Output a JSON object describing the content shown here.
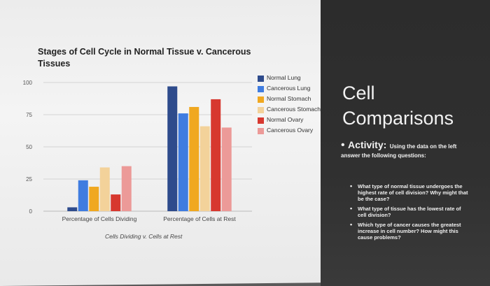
{
  "slide": {
    "chart_title": "Stages of Cell Cycle in Normal Tissue v. Cancerous Tissues",
    "panel_title": "Cell Comparisons",
    "activity_lead": "Activity:",
    "activity_text": "Using the data on the left answer the following questions:",
    "questions": [
      "What type of normal tissue undergoes the highest rate of cell division? Why might that be the case?",
      "What type of tissue has the lowest rate of cell division?",
      "Which type of cancer causes the greatest increase in cell number? How might this cause problems?"
    ],
    "colors": {
      "normal_lung": "#2e4b8c",
      "cancerous_lung": "#3f7ce0",
      "normal_stomach": "#f0a820",
      "cancerous_stomach": "#f3d29a",
      "normal_ovary": "#d7382f",
      "cancerous_ovary": "#ec9a98"
    }
  },
  "chart_data": {
    "type": "bar",
    "title": "Stages of Cell Cycle in Normal Tissue v. Cancerous Tissues",
    "xlabel": "Cells Dividing v. Cells at Rest",
    "ylabel": "",
    "ylim": [
      0,
      100
    ],
    "yticks": [
      "0",
      "25",
      "50",
      "75",
      "100"
    ],
    "categories": [
      "Percentage of Cells Dividing",
      "Percentage of Cells at Rest"
    ],
    "legend_position": "right",
    "grid": true,
    "series": [
      {
        "name": "Normal Lung",
        "color": "#2e4b8c",
        "values": [
          3,
          97
        ]
      },
      {
        "name": "Cancerous Lung",
        "color": "#3f7ce0",
        "values": [
          24,
          76
        ]
      },
      {
        "name": "Normal Stomach",
        "color": "#f0a820",
        "values": [
          19,
          81
        ]
      },
      {
        "name": "Cancerous Stomach",
        "color": "#f3d29a",
        "values": [
          34,
          66
        ]
      },
      {
        "name": "Normal Ovary",
        "color": "#d7382f",
        "values": [
          13,
          87
        ]
      },
      {
        "name": "Cancerous Ovary",
        "color": "#ec9a98",
        "values": [
          35,
          65
        ]
      }
    ]
  }
}
